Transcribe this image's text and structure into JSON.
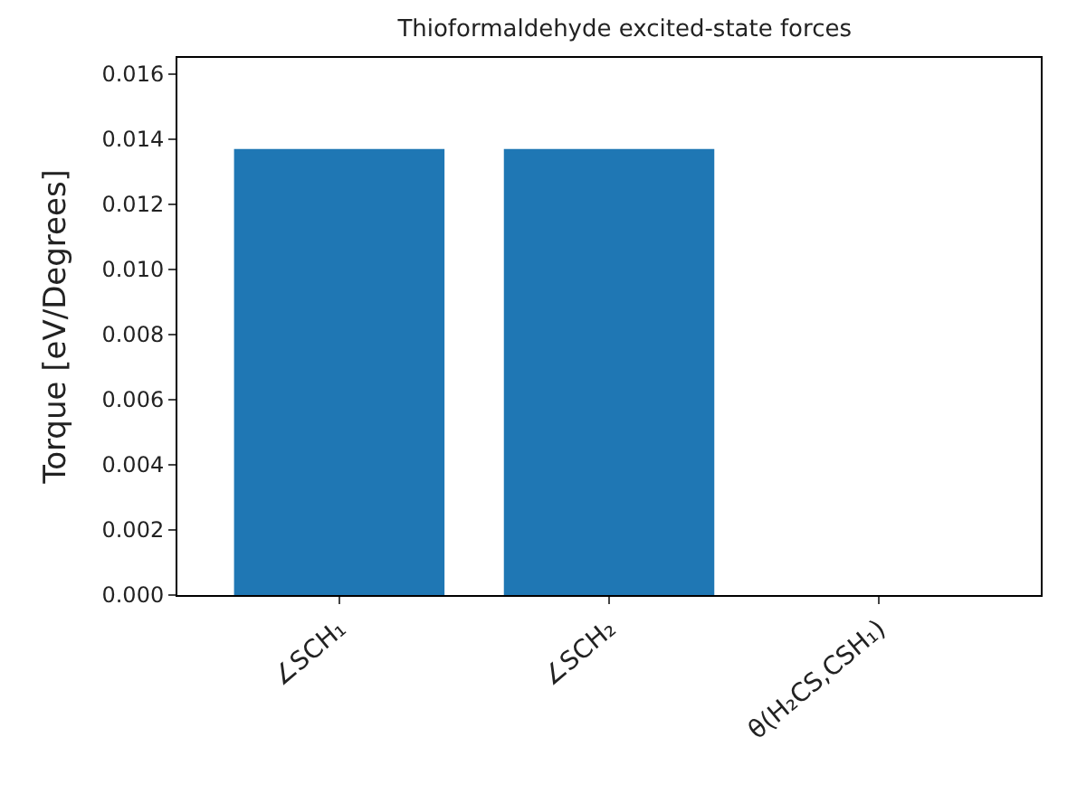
{
  "chart_data": {
    "type": "bar",
    "title": "Thioformaldehyde excited-state forces",
    "ylabel": "Torque [eV/Degrees]",
    "categories": [
      "∠SCH₁",
      "∠SCH₂",
      "θ(H₂CS,CSH₁)"
    ],
    "values": [
      0.0137,
      0.0137,
      0
    ],
    "color": "#1f77b4",
    "ylim": [
      0,
      0.0165
    ],
    "yticks": [
      {
        "value": 0,
        "label": "0.000"
      },
      {
        "value": 0.002,
        "label": "0.002"
      },
      {
        "value": 0.004,
        "label": "0.004"
      },
      {
        "value": 0.006,
        "label": "0.006"
      },
      {
        "value": 0.008,
        "label": "0.008"
      },
      {
        "value": 0.01,
        "label": "0.010"
      },
      {
        "value": 0.012,
        "label": "0.012"
      },
      {
        "value": 0.014,
        "label": "0.014"
      },
      {
        "value": 0.016,
        "label": "0.016"
      }
    ]
  }
}
